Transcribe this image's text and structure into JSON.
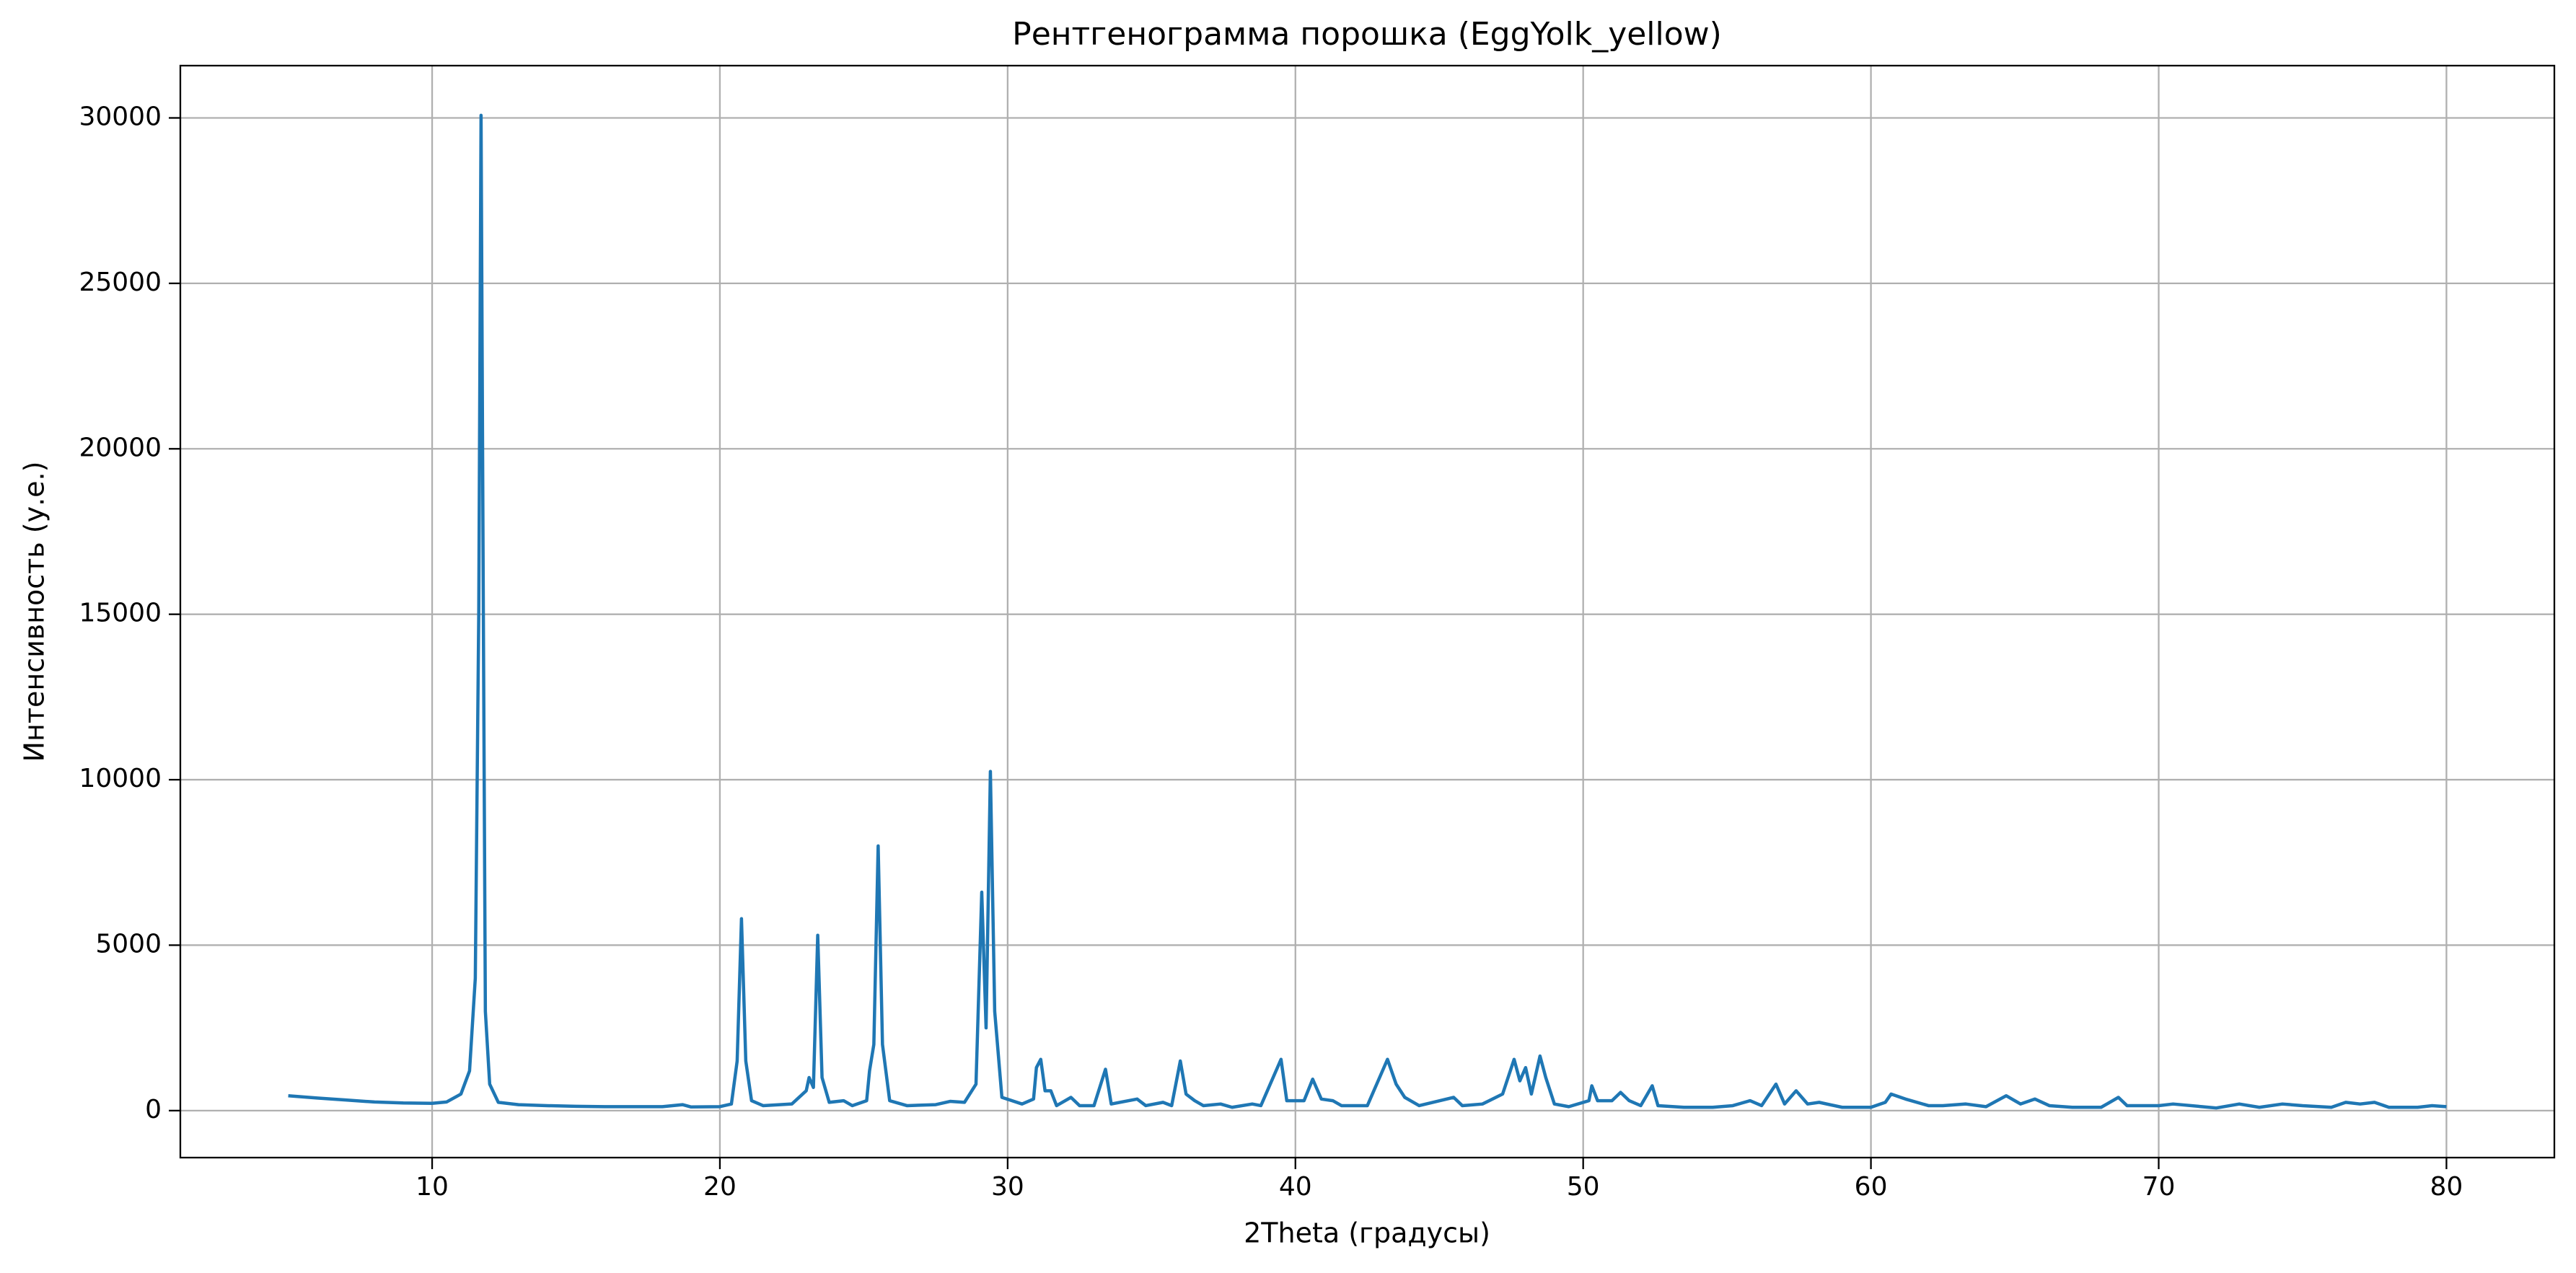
{
  "chart_data": {
    "type": "line",
    "title": "Рентгенограмма порошка (EggYolk_yellow)",
    "x_label": "2Theta (градусы)",
    "y_label": "Интенсивность (у.е.)",
    "xlim": [
      1.25,
      83.75
    ],
    "ylim": [
      -1420,
      31580
    ],
    "xticks": [
      10,
      20,
      30,
      40,
      50,
      60,
      70,
      80
    ],
    "yticks": [
      0,
      5000,
      10000,
      15000,
      20000,
      25000,
      30000
    ],
    "grid": true,
    "series": [
      {
        "color": "#1f77b4",
        "x": [
          5.0,
          6,
          7,
          8,
          9,
          10,
          10.5,
          11.0,
          11.3,
          11.5,
          11.62,
          11.7,
          11.78,
          11.85,
          12.0,
          12.3,
          13,
          14,
          15,
          16,
          17,
          18,
          18.7,
          19,
          20,
          20.4,
          20.6,
          20.75,
          20.9,
          21.1,
          21.5,
          22.5,
          23.0,
          23.1,
          23.25,
          23.4,
          23.55,
          23.8,
          24.3,
          24.6,
          25.1,
          25.2,
          25.35,
          25.5,
          25.65,
          25.9,
          26.5,
          27.5,
          28,
          28.5,
          28.9,
          29.1,
          29.25,
          29.4,
          29.55,
          29.8,
          30.5,
          30.9,
          31.0,
          31.15,
          31.3,
          31.5,
          31.7,
          32.2,
          32.5,
          33.0,
          33.4,
          33.6,
          34.5,
          34.8,
          35.4,
          35.7,
          36.0,
          36.2,
          36.5,
          36.8,
          37.4,
          37.8,
          38.5,
          38.8,
          39.5,
          39.7,
          40.3,
          40.6,
          40.9,
          41.3,
          41.6,
          42.5,
          43.2,
          43.5,
          43.8,
          44.3,
          45.5,
          45.8,
          46.5,
          47.2,
          47.6,
          47.8,
          48.0,
          48.2,
          48.5,
          48.7,
          49.0,
          49.5,
          50.2,
          50.3,
          50.5,
          51.0,
          51.3,
          51.6,
          52.0,
          52.4,
          52.6,
          53.5,
          54.5,
          55.2,
          55.8,
          56.2,
          56.7,
          57.0,
          57.4,
          57.8,
          58.2,
          59,
          60,
          60.5,
          60.7,
          61.2,
          62.0,
          62.5,
          63.3,
          64.0,
          64.7,
          65.2,
          65.7,
          66.2,
          67,
          68,
          68.6,
          68.9,
          70,
          70.5,
          71.5,
          72,
          72.8,
          73.5,
          74.3,
          75,
          76,
          76.5,
          77,
          77.5,
          78,
          79,
          79.5,
          80.0
        ],
        "values": [
          450,
          380,
          320,
          260,
          230,
          220,
          260,
          500,
          1200,
          4000,
          15000,
          30080,
          15000,
          3000,
          800,
          250,
          180,
          150,
          130,
          120,
          120,
          120,
          180,
          110,
          120,
          200,
          1500,
          5800,
          1500,
          300,
          150,
          200,
          600,
          1000,
          700,
          5300,
          1000,
          250,
          300,
          150,
          300,
          1200,
          2000,
          8000,
          2000,
          300,
          150,
          180,
          280,
          250,
          800,
          6600,
          2500,
          10250,
          3000,
          400,
          200,
          350,
          1300,
          1550,
          600,
          600,
          150,
          400,
          150,
          150,
          1250,
          200,
          350,
          150,
          250,
          150,
          1500,
          500,
          300,
          150,
          200,
          100,
          200,
          150,
          1550,
          300,
          300,
          950,
          350,
          300,
          150,
          150,
          1550,
          800,
          400,
          150,
          400,
          150,
          200,
          500,
          1550,
          900,
          1300,
          500,
          1650,
          1000,
          200,
          120,
          300,
          750,
          300,
          300,
          550,
          300,
          150,
          750,
          150,
          100,
          100,
          150,
          300,
          150,
          800,
          200,
          600,
          200,
          250,
          100,
          100,
          250,
          500,
          350,
          150,
          150,
          200,
          120,
          450,
          200,
          350,
          150,
          100,
          100,
          400,
          150,
          150,
          200,
          120,
          80,
          200,
          100,
          200,
          150,
          100,
          250,
          200,
          250,
          100,
          100,
          150,
          120
        ]
      }
    ]
  }
}
